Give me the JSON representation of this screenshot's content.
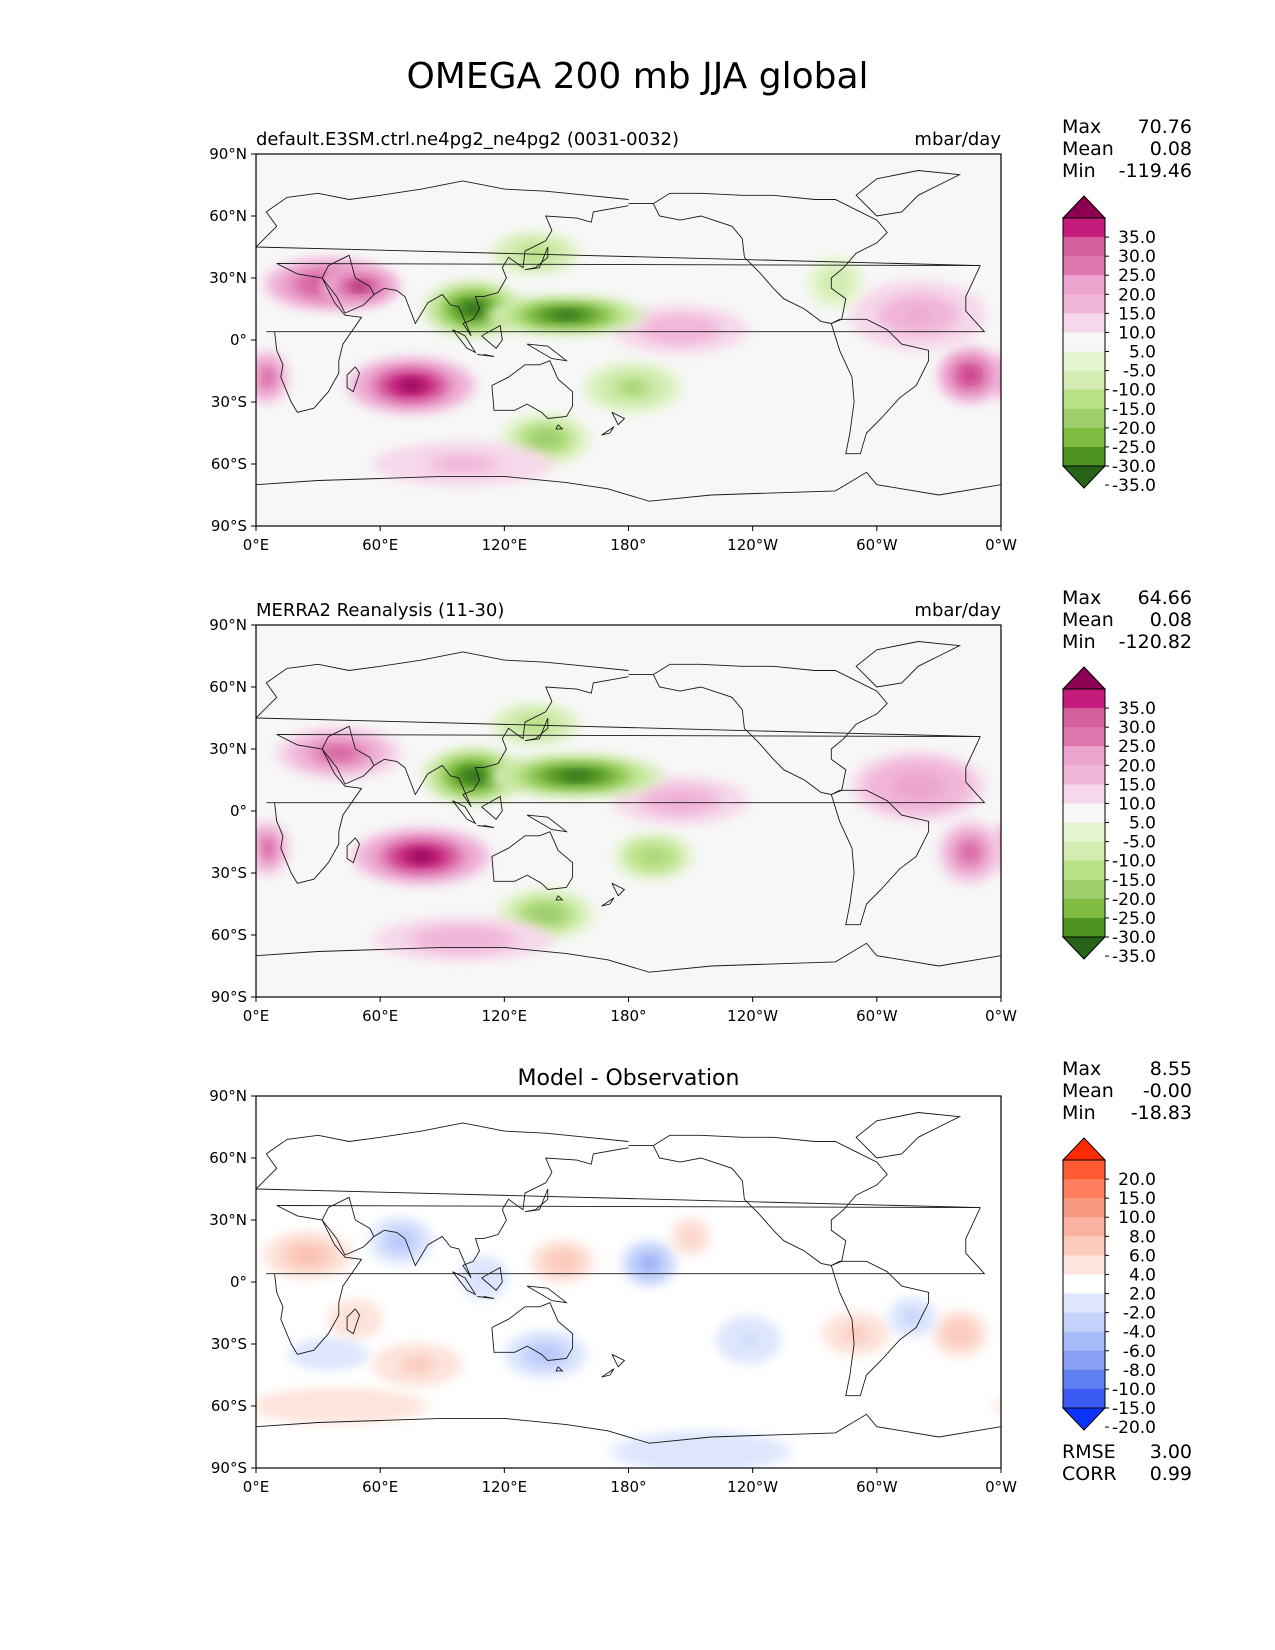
{
  "figure": {
    "title": "OMEGA 200 mb JJA global"
  },
  "chart_data": [
    {
      "type": "heatmap",
      "title_left": "default.E3SM.ctrl.ne4pg2_ne4pg2 (0031-0032)",
      "title_right": "mbar/day",
      "xticks": [
        "0°E",
        "60°E",
        "120°E",
        "180°",
        "120°W",
        "60°W",
        "0°W"
      ],
      "yticks": [
        "90°N",
        "60°N",
        "30°N",
        "0°",
        "30°S",
        "60°S",
        "90°S"
      ],
      "xlim": [
        0,
        360
      ],
      "ylim": [
        -90,
        90
      ],
      "stats": [
        {
          "label": "Max",
          "value": "70.76"
        },
        {
          "label": "Mean",
          "value": "0.08"
        },
        {
          "label": "Min",
          "value": "-119.46"
        }
      ],
      "colorbar": {
        "labels": [
          "35.0",
          "30.0",
          "25.0",
          "20.0",
          "15.0",
          "10.0",
          "5.0",
          "-5.0",
          "-10.0",
          "-15.0",
          "-20.0",
          "-25.0",
          "-30.0",
          "-35.0"
        ],
        "colors": [
          "#8e0152",
          "#c51b7d",
          "#d5609e",
          "#de77ae",
          "#eba5cf",
          "#f1b6da",
          "#f6d8ea",
          "#f7f7f7",
          "#e6f5d0",
          "#d2ecb2",
          "#b8e186",
          "#9fcf6d",
          "#7fbc41",
          "#4d9221",
          "#276419"
        ]
      },
      "blobs": [
        {
          "lon": 35,
          "lat": 27,
          "rx": 28,
          "ry": 11,
          "value": 30
        },
        {
          "lon": 50,
          "lat": 26,
          "rx": 18,
          "ry": 8,
          "value": 35
        },
        {
          "lon": 75,
          "lat": -22,
          "rx": 28,
          "ry": 12,
          "value": 40
        },
        {
          "lon": 5,
          "lat": -18,
          "rx": 10,
          "ry": 12,
          "value": 25
        },
        {
          "lon": 345,
          "lat": -17,
          "rx": 14,
          "ry": 12,
          "value": 30
        },
        {
          "lon": 205,
          "lat": 5,
          "rx": 30,
          "ry": 10,
          "value": 10
        },
        {
          "lon": 320,
          "lat": 12,
          "rx": 30,
          "ry": 15,
          "value": 12
        },
        {
          "lon": 105,
          "lat": 15,
          "rx": 22,
          "ry": 12,
          "value": -40
        },
        {
          "lon": 150,
          "lat": 12,
          "rx": 35,
          "ry": 8,
          "value": -40
        },
        {
          "lon": 135,
          "lat": 42,
          "rx": 20,
          "ry": 9,
          "value": -15
        },
        {
          "lon": 140,
          "lat": -48,
          "rx": 20,
          "ry": 11,
          "value": -22
        },
        {
          "lon": 182,
          "lat": -23,
          "rx": 22,
          "ry": 11,
          "value": -18
        },
        {
          "lon": 280,
          "lat": 28,
          "rx": 12,
          "ry": 11,
          "value": -10
        },
        {
          "lon": 100,
          "lat": -60,
          "rx": 40,
          "ry": 9,
          "value": 8
        }
      ]
    },
    {
      "type": "heatmap",
      "title_left": "MERRA2 Reanalysis (11-30)",
      "title_right": "mbar/day",
      "xticks": [
        "0°E",
        "60°E",
        "120°E",
        "180°",
        "120°W",
        "60°W",
        "0°W"
      ],
      "yticks": [
        "90°N",
        "60°N",
        "30°N",
        "0°",
        "30°S",
        "60°S",
        "90°S"
      ],
      "xlim": [
        0,
        360
      ],
      "ylim": [
        -90,
        90
      ],
      "stats": [
        {
          "label": "Max",
          "value": "64.66"
        },
        {
          "label": "Mean",
          "value": "0.08"
        },
        {
          "label": "Min",
          "value": "-120.82"
        }
      ],
      "colorbar": {
        "labels": [
          "35.0",
          "30.0",
          "25.0",
          "20.0",
          "15.0",
          "10.0",
          "5.0",
          "-5.0",
          "-10.0",
          "-15.0",
          "-20.0",
          "-25.0",
          "-30.0",
          "-35.0"
        ],
        "colors": [
          "#8e0152",
          "#c51b7d",
          "#d5609e",
          "#de77ae",
          "#eba5cf",
          "#f1b6da",
          "#f6d8ea",
          "#f7f7f7",
          "#e6f5d0",
          "#d2ecb2",
          "#b8e186",
          "#9fcf6d",
          "#7fbc41",
          "#4d9221",
          "#276419"
        ]
      },
      "blobs": [
        {
          "lon": 40,
          "lat": 28,
          "rx": 28,
          "ry": 11,
          "value": 28
        },
        {
          "lon": 80,
          "lat": -22,
          "rx": 30,
          "ry": 12,
          "value": 40
        },
        {
          "lon": 5,
          "lat": -18,
          "rx": 10,
          "ry": 12,
          "value": 28
        },
        {
          "lon": 345,
          "lat": -20,
          "rx": 14,
          "ry": 14,
          "value": 25
        },
        {
          "lon": 205,
          "lat": 5,
          "rx": 30,
          "ry": 10,
          "value": 12
        },
        {
          "lon": 320,
          "lat": 12,
          "rx": 30,
          "ry": 15,
          "value": 15
        },
        {
          "lon": 105,
          "lat": 17,
          "rx": 22,
          "ry": 12,
          "value": -40
        },
        {
          "lon": 155,
          "lat": 17,
          "rx": 38,
          "ry": 9,
          "value": -40
        },
        {
          "lon": 135,
          "lat": 42,
          "rx": 20,
          "ry": 9,
          "value": -15
        },
        {
          "lon": 140,
          "lat": -50,
          "rx": 22,
          "ry": 11,
          "value": -22
        },
        {
          "lon": 192,
          "lat": -22,
          "rx": 18,
          "ry": 10,
          "value": -20
        },
        {
          "lon": 100,
          "lat": -62,
          "rx": 40,
          "ry": 9,
          "value": 10
        }
      ]
    },
    {
      "type": "heatmap",
      "title_center": "Model - Observation",
      "xticks": [
        "0°E",
        "60°E",
        "120°E",
        "180°",
        "120°W",
        "60°W",
        "0°W"
      ],
      "yticks": [
        "90°N",
        "60°N",
        "30°N",
        "0°",
        "30°S",
        "60°S",
        "90°S"
      ],
      "xlim": [
        0,
        360
      ],
      "ylim": [
        -90,
        90
      ],
      "stats": [
        {
          "label": "Max",
          "value": "8.55"
        },
        {
          "label": "Mean",
          "value": "-0.00"
        },
        {
          "label": "Min",
          "value": "-18.83"
        }
      ],
      "metrics": [
        {
          "label": "RMSE",
          "value": "3.00"
        },
        {
          "label": "CORR",
          "value": "0.99"
        }
      ],
      "colorbar": {
        "labels": [
          "20.0",
          "15.0",
          "10.0",
          "8.0",
          "6.0",
          "4.0",
          "2.0",
          "-2.0",
          "-4.0",
          "-6.0",
          "-8.0",
          "-10.0",
          "-15.0",
          "-20.0"
        ],
        "colors": [
          "#ff2a00",
          "#ff5a32",
          "#ff7e5e",
          "#f79a80",
          "#f9b3a0",
          "#fbccbd",
          "#fde4dc",
          "#ffffff",
          "#dde6fd",
          "#c3d1fb",
          "#a6bbf7",
          "#889ff4",
          "#5f80f2",
          "#3a5cf5",
          "#0b34fe"
        ]
      },
      "blobs": [
        {
          "lon": 25,
          "lat": 13,
          "rx": 20,
          "ry": 10,
          "value": 7
        },
        {
          "lon": 70,
          "lat": 20,
          "rx": 14,
          "ry": 10,
          "value": -7
        },
        {
          "lon": 148,
          "lat": 10,
          "rx": 14,
          "ry": 9,
          "value": 6
        },
        {
          "lon": 190,
          "lat": 9,
          "rx": 12,
          "ry": 10,
          "value": -10
        },
        {
          "lon": 210,
          "lat": 22,
          "rx": 8,
          "ry": 8,
          "value": 5
        },
        {
          "lon": 140,
          "lat": -35,
          "rx": 18,
          "ry": 10,
          "value": -7
        },
        {
          "lon": 78,
          "lat": -40,
          "rx": 20,
          "ry": 9,
          "value": 5
        },
        {
          "lon": 48,
          "lat": -18,
          "rx": 12,
          "ry": 8,
          "value": 4
        },
        {
          "lon": 340,
          "lat": -25,
          "rx": 12,
          "ry": 10,
          "value": 6
        },
        {
          "lon": 290,
          "lat": -25,
          "rx": 15,
          "ry": 9,
          "value": 5
        },
        {
          "lon": 317,
          "lat": -17,
          "rx": 10,
          "ry": 8,
          "value": -5
        },
        {
          "lon": 238,
          "lat": -28,
          "rx": 14,
          "ry": 10,
          "value": -4
        },
        {
          "lon": 110,
          "lat": 2,
          "rx": 10,
          "ry": 9,
          "value": -4
        },
        {
          "lon": 35,
          "lat": -35,
          "rx": 18,
          "ry": 6,
          "value": -3
        },
        {
          "lon": 215,
          "lat": -82,
          "rx": 40,
          "ry": 8,
          "value": -2.5
        },
        {
          "lon": 40,
          "lat": -60,
          "rx": 40,
          "ry": 7,
          "value": 3
        }
      ]
    }
  ]
}
